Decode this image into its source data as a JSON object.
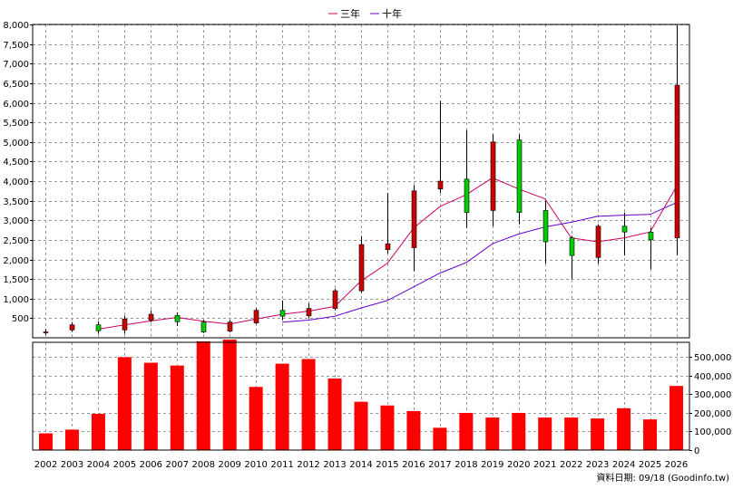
{
  "chart_data": {
    "type": "candlestick+line+bar",
    "years": [
      "2002",
      "2003",
      "2004",
      "2005",
      "2006",
      "2007",
      "2008",
      "2009",
      "2010",
      "2011",
      "2012",
      "2013",
      "2014",
      "2015",
      "2016",
      "2017",
      "2018",
      "2019",
      "2020",
      "2021",
      "2022",
      "2023",
      "2024",
      "2025",
      "2026"
    ],
    "legend": [
      {
        "label": "三年",
        "color": "#cc0066"
      },
      {
        "label": "十年",
        "color": "#6600cc"
      }
    ],
    "price_axis": {
      "min": 0,
      "max": 8000,
      "ticks": [
        500,
        1000,
        1500,
        2000,
        2500,
        3000,
        3500,
        4000,
        4500,
        5000,
        5500,
        6000,
        6500,
        7000,
        7500,
        8000
      ],
      "tick_labels": [
        "500",
        "1,000",
        "1,500",
        "2,000",
        "2,500",
        "3,000",
        "3,500",
        "4,000",
        "4,500",
        "5,000",
        "5,500",
        "6,000",
        "6,500",
        "7,000",
        "7,500",
        "8,000"
      ]
    },
    "volume_axis": {
      "min": 0,
      "max": 580000,
      "ticks": [
        0,
        100000,
        200000,
        300000,
        400000,
        500000
      ],
      "tick_labels": [
        "0",
        "100,000",
        "200,000",
        "300,000",
        "400,000",
        "500,000"
      ]
    },
    "candles": [
      {
        "open": 150,
        "close": 150,
        "high": 220,
        "low": 80
      },
      {
        "open": 200,
        "close": 330,
        "high": 400,
        "low": 150
      },
      {
        "open": 330,
        "close": 180,
        "high": 420,
        "low": 100
      },
      {
        "open": 200,
        "close": 480,
        "high": 560,
        "low": 100
      },
      {
        "open": 450,
        "close": 600,
        "high": 700,
        "low": 400
      },
      {
        "open": 570,
        "close": 410,
        "high": 650,
        "low": 300
      },
      {
        "open": 400,
        "close": 150,
        "high": 450,
        "low": 120
      },
      {
        "open": 170,
        "close": 400,
        "high": 450,
        "low": 140
      },
      {
        "open": 380,
        "close": 700,
        "high": 750,
        "low": 350
      },
      {
        "open": 700,
        "close": 550,
        "high": 950,
        "low": 450
      },
      {
        "open": 560,
        "close": 750,
        "high": 880,
        "low": 500
      },
      {
        "open": 750,
        "close": 1200,
        "high": 1250,
        "low": 700
      },
      {
        "open": 1200,
        "close": 2380,
        "high": 2600,
        "low": 1150
      },
      {
        "open": 2250,
        "close": 2400,
        "high": 3700,
        "low": 2150
      },
      {
        "open": 2300,
        "close": 3750,
        "high": 3900,
        "low": 1700
      },
      {
        "open": 3800,
        "close": 4000,
        "high": 6050,
        "low": 3700
      },
      {
        "open": 4050,
        "close": 3200,
        "high": 5300,
        "low": 2800
      },
      {
        "open": 3250,
        "close": 5000,
        "high": 5200,
        "low": 2850
      },
      {
        "open": 5050,
        "close": 3200,
        "high": 5200,
        "low": 2900
      },
      {
        "open": 3250,
        "close": 2450,
        "high": 3500,
        "low": 1900
      },
      {
        "open": 2550,
        "close": 2100,
        "high": 2600,
        "low": 1500
      },
      {
        "open": 2050,
        "close": 2850,
        "high": 2900,
        "low": 1900
      },
      {
        "open": 2850,
        "close": 2700,
        "high": 3200,
        "low": 2100
      },
      {
        "open": 2700,
        "close": 2500,
        "high": 2800,
        "low": 1750
      },
      {
        "open": 2550,
        "close": 6450,
        "high": 7980,
        "low": 2100
      }
    ],
    "ma3": [
      null,
      null,
      220,
      330,
      430,
      520,
      420,
      350,
      480,
      600,
      680,
      800,
      1450,
      1900,
      2800,
      3350,
      3650,
      4080,
      3800,
      3550,
      2550,
      2450,
      2550,
      2700,
      3850
    ],
    "ma10": [
      null,
      null,
      null,
      null,
      null,
      null,
      null,
      null,
      null,
      400,
      450,
      550,
      760,
      950,
      1300,
      1650,
      1920,
      2400,
      2650,
      2830,
      2950,
      3100,
      3130,
      3150,
      3450
    ],
    "volume": [
      90000,
      110000,
      195000,
      500000,
      470000,
      455000,
      585000,
      595000,
      340000,
      465000,
      490000,
      385000,
      260000,
      240000,
      210000,
      120000,
      200000,
      175000,
      200000,
      175000,
      175000,
      170000,
      225000,
      165000,
      345000
    ]
  },
  "footer": {
    "source_label": "資料日期: 09/18 (Goodinfo.tw)"
  }
}
